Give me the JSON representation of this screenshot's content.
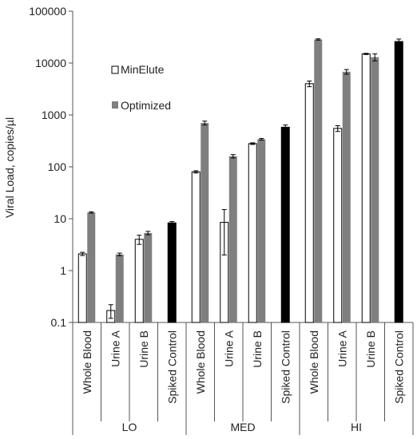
{
  "chart_data": {
    "type": "bar",
    "title": "",
    "ylabel": "Viral Load, copies/µl",
    "yscale": "log",
    "ylim": [
      0.1,
      100000
    ],
    "y_ticks": [
      "0.1",
      "1",
      "10",
      "100",
      "1000",
      "10000",
      "100000"
    ],
    "grid": false,
    "legend": {
      "placement": "top-left (inside plot)",
      "entries": [
        {
          "name": "MinElute",
          "color": "#ffffff"
        },
        {
          "name": "Optimized",
          "color": "#7f7f7f"
        }
      ]
    },
    "groups": [
      {
        "label": "LO",
        "categories": [
          {
            "label": "Whole Blood",
            "bars": [
              {
                "series": "MinElute",
                "value": 2.1,
                "err": 0.15
              },
              {
                "series": "Optimized",
                "value": 13.2,
                "err": 0.4
              }
            ]
          },
          {
            "label": "Urine A",
            "bars": [
              {
                "series": "MinElute",
                "value": 0.17,
                "err": 0.05
              },
              {
                "series": "Optimized",
                "value": 2.05,
                "err": 0.12
              }
            ]
          },
          {
            "label": "Urine B",
            "bars": [
              {
                "series": "MinElute",
                "value": 4.0,
                "err": 0.8
              },
              {
                "series": "Optimized",
                "value": 5.3,
                "err": 0.4
              }
            ]
          },
          {
            "label": "Spiked Control",
            "bars": [
              {
                "series": "Spiked Control",
                "value": 8.3,
                "err": 0.5
              }
            ]
          }
        ]
      },
      {
        "label": "MED",
        "categories": [
          {
            "label": "Whole Blood",
            "bars": [
              {
                "series": "MinElute",
                "value": 80,
                "err": 4
              },
              {
                "series": "Optimized",
                "value": 700,
                "err": 60
              }
            ]
          },
          {
            "label": "Urine A",
            "bars": [
              {
                "series": "MinElute",
                "value": 8.5,
                "err": 6.5
              },
              {
                "series": "Optimized",
                "value": 160,
                "err": 12
              }
            ]
          },
          {
            "label": "Urine B",
            "bars": [
              {
                "series": "MinElute",
                "value": 280,
                "err": 10
              },
              {
                "series": "Optimized",
                "value": 340,
                "err": 12
              }
            ]
          },
          {
            "label": "Spiked Control",
            "bars": [
              {
                "series": "Spiked Control",
                "value": 580,
                "err": 60
              }
            ]
          }
        ]
      },
      {
        "label": "HI",
        "categories": [
          {
            "label": "Whole Blood",
            "bars": [
              {
                "series": "MinElute",
                "value": 4000,
                "err": 500
              },
              {
                "series": "Optimized",
                "value": 28500,
                "err": 800
              }
            ]
          },
          {
            "label": "Urine A",
            "bars": [
              {
                "series": "MinElute",
                "value": 550,
                "err": 70
              },
              {
                "series": "Optimized",
                "value": 6800,
                "err": 700
              }
            ]
          },
          {
            "label": "Urine B",
            "bars": [
              {
                "series": "MinElute",
                "value": 15000,
                "err": 400
              },
              {
                "series": "Optimized",
                "value": 13000,
                "err": 2000
              }
            ]
          },
          {
            "label": "Spiked Control",
            "bars": [
              {
                "series": "Spiked Control",
                "value": 26000,
                "err": 3000
              }
            ]
          }
        ]
      }
    ],
    "series_colors": {
      "MinElute": "#ffffff",
      "Optimized": "#7f7f7f",
      "Spiked Control": "#000000"
    }
  }
}
